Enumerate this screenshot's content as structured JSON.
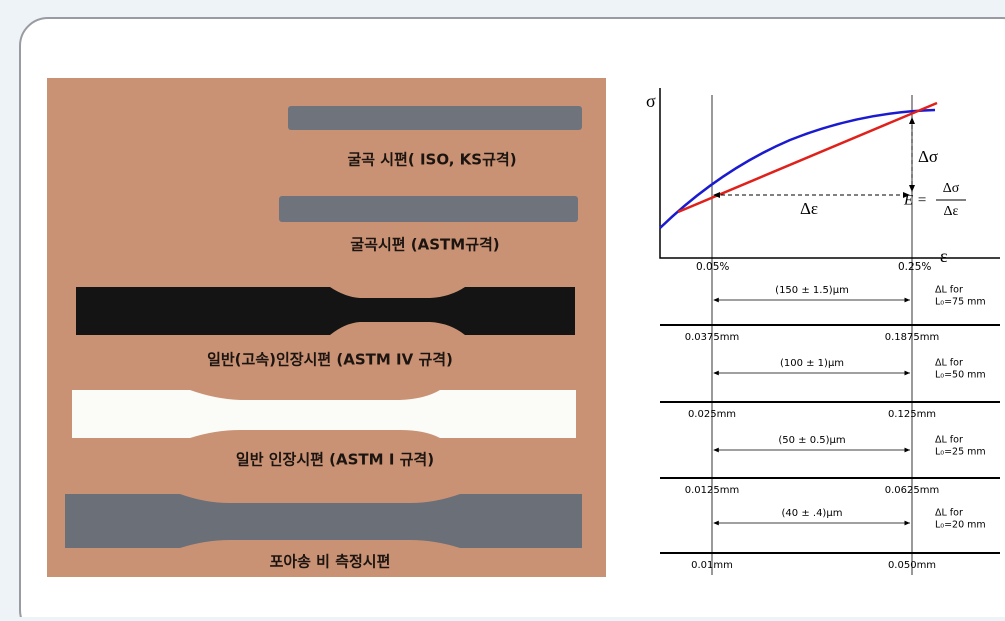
{
  "photo": {
    "specimens": [
      {
        "label": "굴곡 시편( ISO, KS규격)"
      },
      {
        "label": "굴곡시편 (ASTM규격)"
      },
      {
        "label": "일반(고속)인장시편 (ASTM IV 규격)"
      },
      {
        "label": "일반 인장시편 (ASTM I 규격)"
      },
      {
        "label": "포아송 비 측정시편"
      }
    ]
  },
  "graph": {
    "y_axis": "σ",
    "x_axis": "ε",
    "strain_low": "0.05%",
    "strain_high": "0.25%",
    "delta_sigma": "Δσ",
    "delta_epsilon": "Δε",
    "formula": {
      "lhs": "E =",
      "numerator": "Δσ",
      "denominator": "Δε"
    }
  },
  "gauges": [
    {
      "span": "(150 ± 1.5)μm",
      "left": "0.0375mm",
      "right": "0.1875mm",
      "note": [
        "ΔL for",
        "L₀=75 mm"
      ]
    },
    {
      "span": "(100 ± 1)μm",
      "left": "0.025mm",
      "right": "0.125mm",
      "note": [
        "ΔL for",
        "L₀=50 mm"
      ]
    },
    {
      "span": "(50 ± 0.5)μm",
      "left": "0.0125mm",
      "right": "0.0625mm",
      "note": [
        "ΔL for",
        "L₀=25 mm"
      ]
    },
    {
      "span": "(40 ± .4)μm",
      "left": "0.01mm",
      "right": "0.050mm",
      "note": [
        "ΔL for",
        "L₀=20 mm"
      ]
    }
  ]
}
